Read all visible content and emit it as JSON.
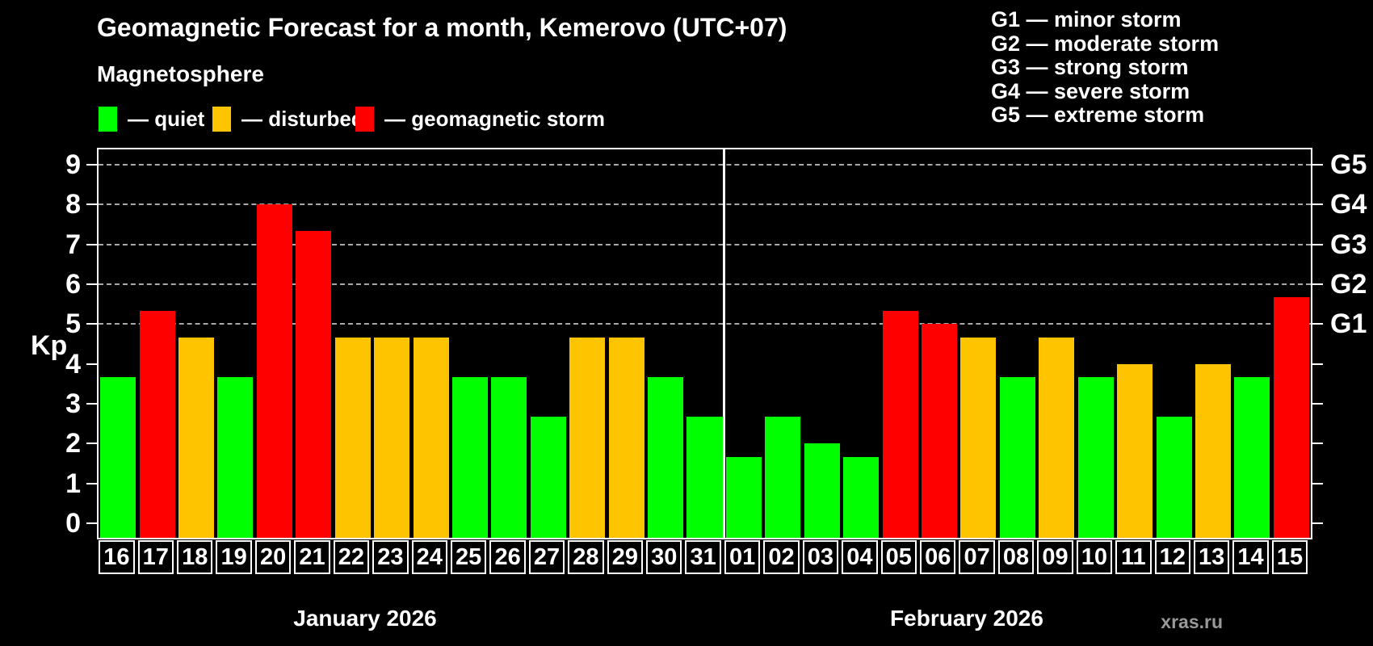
{
  "title": "Geomagnetic Forecast for a month, Kemerovo (UTC+07)",
  "subtitle": "Magnetosphere",
  "watermark": "xras.ru",
  "magnetosphere_legend": [
    {
      "key": "quiet",
      "label": "— quiet",
      "color": "#00ff00"
    },
    {
      "key": "disturbed",
      "label": "— disturbed",
      "color": "#ffc400"
    },
    {
      "key": "storm",
      "label": "— geomagnetic storm",
      "color": "#ff0000"
    }
  ],
  "storm_scale_legend": [
    "G1 — minor storm",
    "G2 — moderate storm",
    "G3 — strong storm",
    "G4 — severe storm",
    "G5 — extreme storm"
  ],
  "chart_data": {
    "type": "bar",
    "title": "Geomagnetic Forecast for a month, Kemerovo (UTC+07)",
    "ylabel": "Kp",
    "ylim": [
      0,
      9
    ],
    "yticks": [
      0,
      1,
      2,
      3,
      4,
      5,
      6,
      7,
      8,
      9
    ],
    "gridlines_at": [
      5,
      6,
      7,
      8,
      9
    ],
    "grid_style": "dashed",
    "right_axis": [
      {
        "kp": 5,
        "label": "G1"
      },
      {
        "kp": 6,
        "label": "G2"
      },
      {
        "kp": 7,
        "label": "G3"
      },
      {
        "kp": 8,
        "label": "G4"
      },
      {
        "kp": 9,
        "label": "G5"
      }
    ],
    "status_colors": {
      "quiet": "#00ff00",
      "disturbed": "#ffc400",
      "storm": "#ff0000"
    },
    "groups": [
      {
        "key": "jan",
        "label": "January 2026",
        "days": [
          {
            "day": "16",
            "kp": 3.67,
            "status": "quiet"
          },
          {
            "day": "17",
            "kp": 5.33,
            "status": "storm"
          },
          {
            "day": "18",
            "kp": 4.67,
            "status": "disturbed"
          },
          {
            "day": "19",
            "kp": 3.67,
            "status": "quiet"
          },
          {
            "day": "20",
            "kp": 8.0,
            "status": "storm"
          },
          {
            "day": "21",
            "kp": 7.33,
            "status": "storm"
          },
          {
            "day": "22",
            "kp": 4.67,
            "status": "disturbed"
          },
          {
            "day": "23",
            "kp": 4.67,
            "status": "disturbed"
          },
          {
            "day": "24",
            "kp": 4.67,
            "status": "disturbed"
          },
          {
            "day": "25",
            "kp": 3.67,
            "status": "quiet"
          },
          {
            "day": "26",
            "kp": 3.67,
            "status": "quiet"
          },
          {
            "day": "27",
            "kp": 2.67,
            "status": "quiet"
          },
          {
            "day": "28",
            "kp": 4.67,
            "status": "disturbed"
          },
          {
            "day": "29",
            "kp": 4.67,
            "status": "disturbed"
          },
          {
            "day": "30",
            "kp": 3.67,
            "status": "quiet"
          },
          {
            "day": "31",
            "kp": 2.67,
            "status": "quiet"
          }
        ]
      },
      {
        "key": "feb",
        "label": "February 2026",
        "days": [
          {
            "day": "01",
            "kp": 1.67,
            "status": "quiet"
          },
          {
            "day": "02",
            "kp": 2.67,
            "status": "quiet"
          },
          {
            "day": "03",
            "kp": 2.0,
            "status": "quiet"
          },
          {
            "day": "04",
            "kp": 1.67,
            "status": "quiet"
          },
          {
            "day": "05",
            "kp": 5.33,
            "status": "storm"
          },
          {
            "day": "06",
            "kp": 5.0,
            "status": "storm"
          },
          {
            "day": "07",
            "kp": 4.67,
            "status": "disturbed"
          },
          {
            "day": "08",
            "kp": 3.67,
            "status": "quiet"
          },
          {
            "day": "09",
            "kp": 4.67,
            "status": "disturbed"
          },
          {
            "day": "10",
            "kp": 3.67,
            "status": "quiet"
          },
          {
            "day": "11",
            "kp": 4.0,
            "status": "disturbed"
          },
          {
            "day": "12",
            "kp": 2.67,
            "status": "quiet"
          },
          {
            "day": "13",
            "kp": 4.0,
            "status": "disturbed"
          },
          {
            "day": "14",
            "kp": 3.67,
            "status": "quiet"
          },
          {
            "day": "15",
            "kp": 5.67,
            "status": "storm"
          }
        ]
      }
    ]
  }
}
